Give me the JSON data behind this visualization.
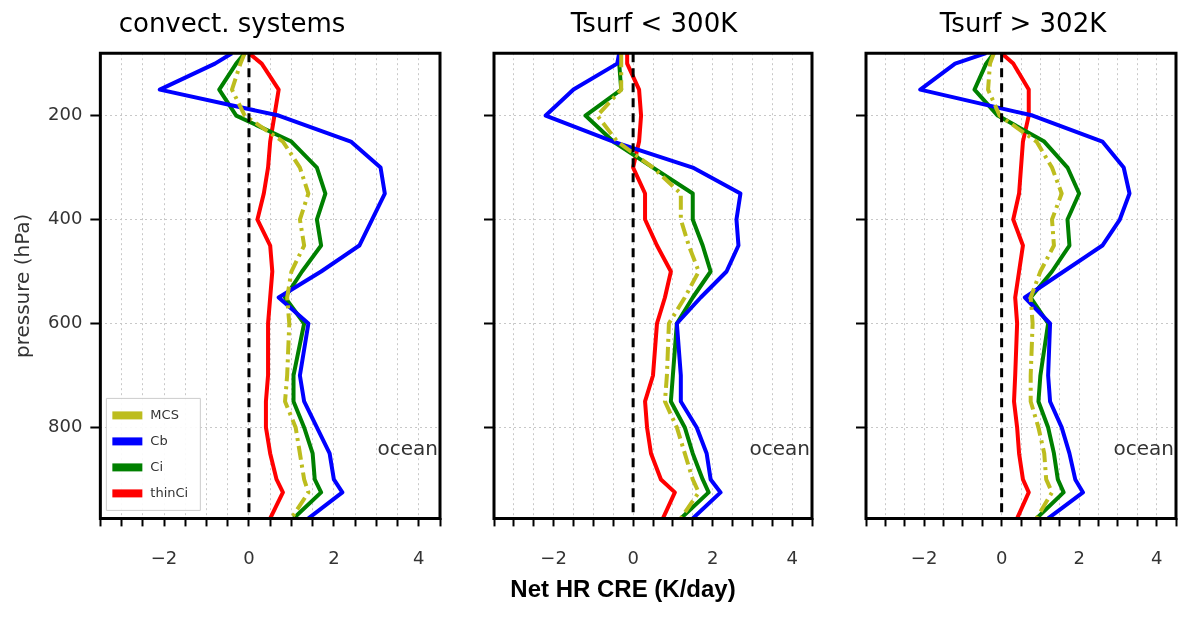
{
  "chart_data": [
    {
      "type": "line",
      "title": "convect. systems",
      "ylabel": "pressure (hPa)",
      "xlim": [
        -3.5,
        4.5
      ],
      "ylim": [
        975,
        80
      ],
      "xticks": [
        {
          "value": -3.5,
          "label": null
        },
        {
          "value": -3,
          "label": null
        },
        {
          "value": -2.5,
          "label": null
        },
        {
          "value": -2,
          "label": "−2"
        },
        {
          "value": -1.5,
          "label": null
        },
        {
          "value": -1,
          "label": null
        },
        {
          "value": -0.5,
          "label": null
        },
        0,
        {
          "value": 0.5,
          "label": null
        },
        {
          "value": 1,
          "label": null
        },
        {
          "value": 1.5,
          "label": null
        },
        2,
        {
          "value": 2.5,
          "label": null
        },
        {
          "value": 3,
          "label": null
        },
        {
          "value": 3.5,
          "label": null
        },
        4,
        {
          "value": 4.5,
          "label": null
        }
      ],
      "yticks": [
        200,
        400,
        600,
        800
      ],
      "grid": true,
      "legend": "bottom left",
      "marker": "none",
      "ref_lines": [
        {
          "axis": "x",
          "value": 0,
          "color": "#000000",
          "line_style": "dashed"
        }
      ],
      "annotations": [
        "ocean"
      ],
      "series": [
        {
          "name": "MCS",
          "color": "#bdbd1e",
          "line_style": "dashed",
          "x": [
            -0.1,
            -0.2,
            -0.4,
            -0.1,
            0.8,
            1.2,
            1.4,
            1.2,
            1.3,
            1.0,
            0.9,
            0.95,
            0.9,
            0.85,
            1.1,
            1.2,
            1.3,
            1.4,
            1.0
          ],
          "values": [
            80,
            100,
            150,
            200,
            250,
            300,
            350,
            400,
            450,
            500,
            550,
            600,
            700,
            750,
            800,
            850,
            900,
            925,
            975
          ]
        },
        {
          "name": "Cb",
          "color": "#0000ff",
          "x": [
            -0.4,
            -0.8,
            -2.1,
            0.7,
            2.4,
            3.1,
            3.2,
            2.9,
            2.6,
            1.7,
            0.7,
            1.4,
            1.2,
            1.3,
            1.6,
            1.9,
            2.0,
            2.2,
            1.4
          ],
          "values": [
            80,
            100,
            150,
            200,
            250,
            300,
            350,
            400,
            450,
            500,
            550,
            600,
            700,
            750,
            800,
            850,
            900,
            925,
            975
          ]
        },
        {
          "name": "Ci",
          "color": "#008000",
          "x": [
            -0.1,
            -0.3,
            -0.7,
            -0.3,
            1.0,
            1.6,
            1.8,
            1.6,
            1.7,
            1.25,
            0.85,
            1.3,
            1.05,
            1.05,
            1.3,
            1.5,
            1.55,
            1.7,
            1.05
          ],
          "values": [
            80,
            100,
            150,
            200,
            250,
            300,
            350,
            400,
            450,
            500,
            550,
            600,
            700,
            750,
            800,
            850,
            900,
            925,
            975
          ]
        },
        {
          "name": "thinCi",
          "color": "#ff0000",
          "x": [
            0,
            0.3,
            0.7,
            0.6,
            0.5,
            0.45,
            0.35,
            0.2,
            0.5,
            0.55,
            0.5,
            0.45,
            0.45,
            0.4,
            0.4,
            0.5,
            0.65,
            0.8,
            0.5
          ],
          "values": [
            80,
            100,
            150,
            200,
            250,
            300,
            350,
            400,
            450,
            500,
            550,
            600,
            700,
            750,
            800,
            850,
            900,
            925,
            975
          ]
        }
      ]
    },
    {
      "type": "line",
      "title": "Tsurf < 300K",
      "xlabel": "Net HR CRE (K/day)",
      "xlim": [
        -3.5,
        4.5
      ],
      "ylim": [
        975,
        80
      ],
      "xticks": [
        {
          "value": -3.5,
          "label": null
        },
        {
          "value": -3,
          "label": null
        },
        {
          "value": -2.5,
          "label": null
        },
        {
          "value": -2,
          "label": "−2"
        },
        {
          "value": -1.5,
          "label": null
        },
        {
          "value": -1,
          "label": null
        },
        {
          "value": -0.5,
          "label": null
        },
        0,
        {
          "value": 0.5,
          "label": null
        },
        {
          "value": 1,
          "label": null
        },
        {
          "value": 1.5,
          "label": null
        },
        2,
        {
          "value": 2.5,
          "label": null
        },
        {
          "value": 3,
          "label": null
        },
        {
          "value": 3.5,
          "label": null
        },
        4,
        {
          "value": 4.5,
          "label": null
        }
      ],
      "yticks": [
        200,
        400,
        600,
        800
      ],
      "grid": true,
      "tick_labels": "x",
      "marker": "none",
      "ref_lines": [
        {
          "axis": "x",
          "value": 0,
          "color": "#000000",
          "line_style": "dashed"
        }
      ],
      "annotations": [
        "ocean"
      ],
      "series": [
        {
          "color": "#bdbd1e",
          "line_style": "dashed",
          "x": [
            -0.3,
            -0.3,
            -0.3,
            -0.9,
            -0.4,
            0.5,
            1.2,
            1.2,
            1.4,
            1.65,
            1.3,
            0.9,
            0.85,
            0.8,
            1.1,
            1.3,
            1.5,
            1.65,
            1.2
          ],
          "values": [
            80,
            100,
            150,
            200,
            250,
            300,
            350,
            400,
            450,
            500,
            550,
            600,
            700,
            750,
            800,
            850,
            900,
            925,
            975
          ]
        },
        {
          "color": "#0000ff",
          "x": [
            -0.35,
            -0.4,
            -1.5,
            -2.2,
            -0.5,
            1.5,
            2.7,
            2.6,
            2.65,
            2.35,
            1.7,
            1.1,
            1.2,
            1.2,
            1.6,
            1.85,
            1.95,
            2.2,
            1.5
          ],
          "values": [
            80,
            100,
            150,
            200,
            250,
            300,
            350,
            400,
            450,
            500,
            550,
            600,
            700,
            750,
            800,
            850,
            900,
            925,
            975
          ]
        },
        {
          "color": "#008000",
          "x": [
            -0.3,
            -0.35,
            -0.3,
            -1.2,
            -0.5,
            0.5,
            1.5,
            1.5,
            1.75,
            1.95,
            1.5,
            1.1,
            1.0,
            0.95,
            1.3,
            1.5,
            1.75,
            1.9,
            1.2
          ],
          "values": [
            80,
            100,
            150,
            200,
            250,
            300,
            350,
            400,
            450,
            500,
            550,
            600,
            700,
            750,
            800,
            850,
            900,
            925,
            975
          ]
        },
        {
          "color": "#ff0000",
          "x": [
            -0.15,
            -0.15,
            0.15,
            0.2,
            0.15,
            0.0,
            0.3,
            0.3,
            0.6,
            0.95,
            0.8,
            0.6,
            0.5,
            0.3,
            0.35,
            0.45,
            0.7,
            1.05,
            0.75
          ],
          "values": [
            80,
            100,
            150,
            200,
            250,
            300,
            350,
            400,
            450,
            500,
            550,
            600,
            700,
            750,
            800,
            850,
            900,
            925,
            975
          ]
        }
      ]
    },
    {
      "type": "line",
      "title": "Tsurf > 302K",
      "xlim": [
        -3.5,
        4.5
      ],
      "ylim": [
        975,
        80
      ],
      "xticks": [
        {
          "value": -3.5,
          "label": null
        },
        {
          "value": -3,
          "label": null
        },
        {
          "value": -2.5,
          "label": null
        },
        {
          "value": -2,
          "label": "−2"
        },
        {
          "value": -1.5,
          "label": null
        },
        {
          "value": -1,
          "label": null
        },
        {
          "value": -0.5,
          "label": null
        },
        0,
        {
          "value": 0.5,
          "label": null
        },
        {
          "value": 1,
          "label": null
        },
        {
          "value": 1.5,
          "label": null
        },
        2,
        {
          "value": 2.5,
          "label": null
        },
        {
          "value": 3,
          "label": null
        },
        {
          "value": 3.5,
          "label": null
        },
        4,
        {
          "value": 4.5,
          "label": null
        }
      ],
      "yticks": [
        200,
        400,
        600,
        800
      ],
      "grid": true,
      "tick_labels": "x",
      "marker": "none",
      "ref_lines": [
        {
          "axis": "x",
          "value": 0,
          "color": "#000000",
          "line_style": "dashed"
        }
      ],
      "annotations": [
        "ocean"
      ],
      "series": [
        {
          "color": "#bdbd1e",
          "line_style": "dashed",
          "x": [
            -0.2,
            -0.3,
            -0.35,
            -0.05,
            0.9,
            1.3,
            1.55,
            1.3,
            1.35,
            1.0,
            0.75,
            0.8,
            0.75,
            0.75,
            0.95,
            1.1,
            1.15,
            1.3,
            0.9
          ],
          "values": [
            80,
            100,
            150,
            200,
            250,
            300,
            350,
            400,
            450,
            500,
            550,
            600,
            700,
            750,
            800,
            850,
            900,
            925,
            975
          ]
        },
        {
          "color": "#0000ff",
          "x": [
            -0.4,
            -1.2,
            -2.1,
            0.8,
            2.6,
            3.15,
            3.3,
            3.05,
            2.6,
            1.6,
            0.6,
            1.25,
            1.2,
            1.25,
            1.55,
            1.75,
            1.9,
            2.1,
            1.2
          ],
          "values": [
            80,
            100,
            150,
            200,
            250,
            300,
            350,
            400,
            450,
            500,
            550,
            600,
            700,
            750,
            800,
            850,
            900,
            925,
            975
          ]
        },
        {
          "color": "#008000",
          "x": [
            -0.2,
            -0.4,
            -0.7,
            -0.1,
            1.1,
            1.7,
            2.0,
            1.7,
            1.75,
            1.3,
            0.75,
            1.2,
            1.0,
            0.95,
            1.2,
            1.35,
            1.45,
            1.6,
            0.9
          ],
          "values": [
            80,
            100,
            150,
            200,
            250,
            300,
            350,
            400,
            450,
            500,
            550,
            600,
            700,
            750,
            800,
            850,
            900,
            925,
            975
          ]
        },
        {
          "color": "#ff0000",
          "x": [
            0,
            0.3,
            0.7,
            0.7,
            0.55,
            0.5,
            0.45,
            0.3,
            0.55,
            0.45,
            0.35,
            0.4,
            0.35,
            0.32,
            0.4,
            0.45,
            0.55,
            0.7,
            0.4
          ],
          "values": [
            80,
            100,
            150,
            200,
            250,
            300,
            350,
            400,
            450,
            500,
            550,
            600,
            700,
            750,
            800,
            850,
            900,
            925,
            975
          ]
        }
      ]
    }
  ]
}
